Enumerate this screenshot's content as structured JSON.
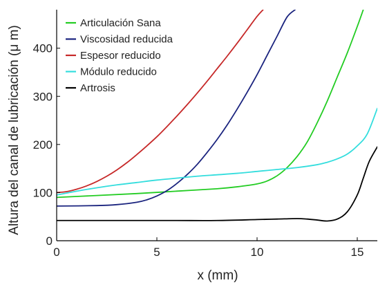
{
  "chart_data": {
    "type": "line",
    "title": "",
    "xlabel": "x (mm)",
    "ylabel": "Altura del canal de lubricación (μ m)",
    "xlim": [
      0,
      16
    ],
    "ylim": [
      0,
      480
    ],
    "xticks": [
      0,
      5,
      10,
      15
    ],
    "yticks": [
      0,
      100,
      200,
      300,
      400
    ],
    "grid": false,
    "legend_position": "top-left",
    "series": [
      {
        "name": "Articulación Sana",
        "color": "#22cc22",
        "x": [
          0,
          2,
          4,
          6,
          8,
          9,
          10,
          10.5,
          11,
          11.5,
          12,
          12.5,
          13,
          13.5,
          14,
          14.5,
          15,
          15.3
        ],
        "y": [
          90,
          94,
          98,
          103,
          108,
          112,
          118,
          124,
          135,
          152,
          175,
          205,
          245,
          290,
          340,
          390,
          445,
          480
        ]
      },
      {
        "name": "Viscosidad reducida",
        "color": "#1a237e",
        "x": [
          0,
          2,
          3,
          4,
          4.5,
          5,
          5.5,
          6,
          6.5,
          7,
          7.5,
          8,
          8.5,
          9,
          9.5,
          10,
          10.5,
          11,
          11.5,
          11.9
        ],
        "y": [
          72,
          73,
          75,
          80,
          85,
          93,
          104,
          119,
          137,
          158,
          183,
          210,
          240,
          273,
          308,
          345,
          385,
          425,
          465,
          480
        ]
      },
      {
        "name": "Espesor reducido",
        "color": "#c62828",
        "x": [
          0,
          0.5,
          1,
          1.5,
          2,
          2.5,
          3,
          3.5,
          4,
          4.5,
          5,
          5.5,
          6,
          6.5,
          7,
          7.5,
          8,
          8.5,
          9,
          9.5,
          10,
          10.3
        ],
        "y": [
          100,
          102,
          107,
          114,
          123,
          134,
          147,
          162,
          179,
          197,
          216,
          237,
          259,
          282,
          306,
          331,
          357,
          383,
          410,
          438,
          466,
          480
        ]
      },
      {
        "name": "Módulo reducido",
        "color": "#33dddd",
        "x": [
          0,
          1,
          2,
          3,
          4,
          5,
          6,
          7,
          8,
          9,
          10,
          11,
          12,
          13,
          13.5,
          14,
          14.5,
          15,
          15.5,
          16
        ],
        "y": [
          95,
          103,
          110,
          116,
          121,
          126,
          130,
          134,
          137,
          140,
          144,
          148,
          152,
          158,
          163,
          170,
          180,
          197,
          222,
          275
        ]
      },
      {
        "name": "Artrosis",
        "color": "#000000",
        "x": [
          0,
          2,
          4,
          6,
          8,
          10,
          11,
          12,
          12.5,
          13,
          13.5,
          14,
          14.5,
          15,
          15.3,
          15.6,
          16
        ],
        "y": [
          42,
          42,
          42,
          42,
          42,
          44,
          45,
          46,
          45,
          43,
          41,
          45,
          60,
          95,
          130,
          165,
          195
        ]
      }
    ]
  }
}
